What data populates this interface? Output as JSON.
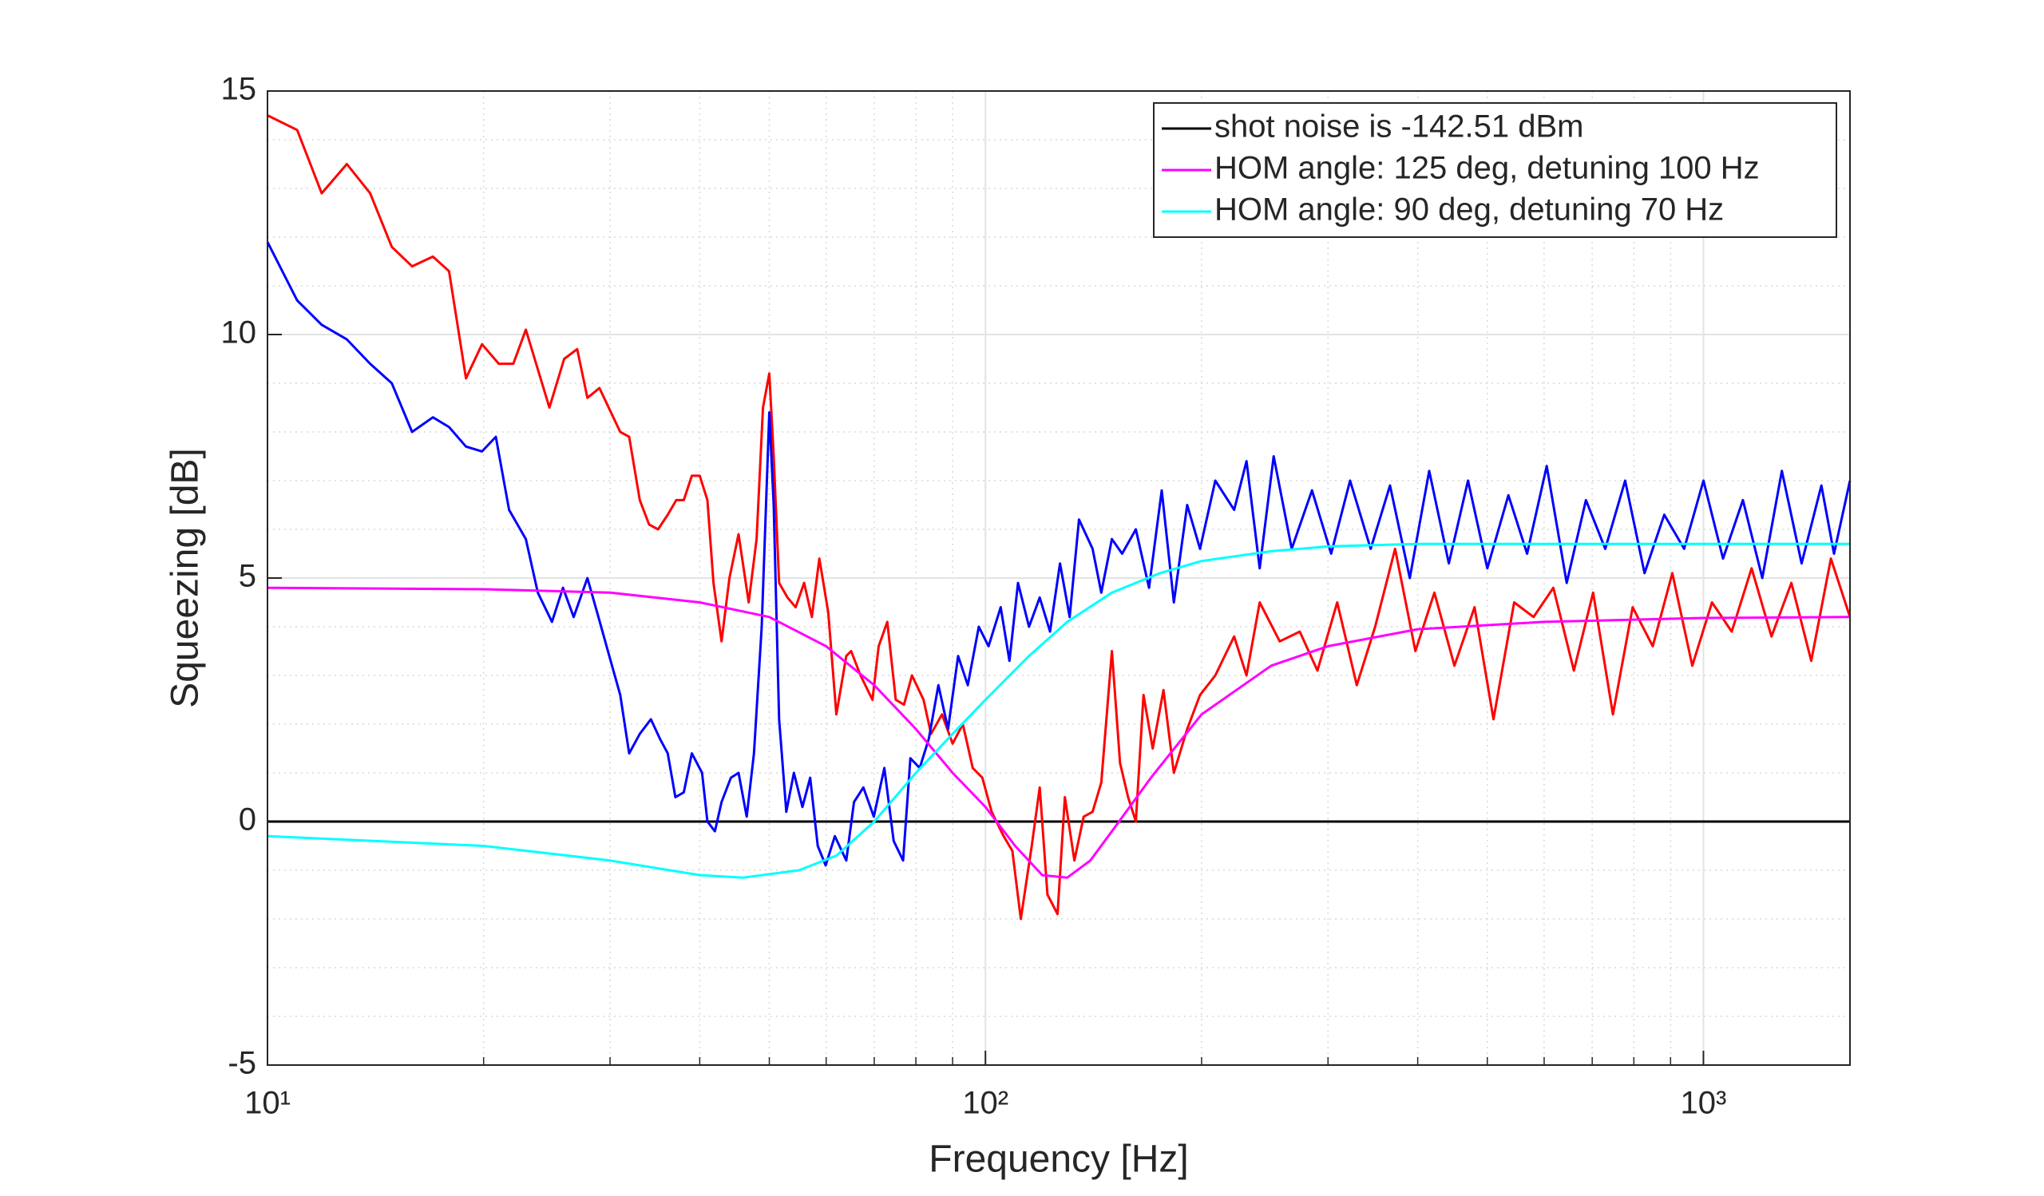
{
  "chart_data": {
    "type": "line",
    "xlabel": "Frequency [Hz]",
    "ylabel": "Squeezing [dB]",
    "xscale": "log",
    "grid": true,
    "minor_grid": true,
    "legend": "northeast",
    "xlim": [
      10,
      1600
    ],
    "ylim": [
      -5,
      15
    ],
    "xticks": [
      {
        "value": 10,
        "label": "10¹"
      },
      {
        "value": 100,
        "label": "10²"
      },
      {
        "value": 1000,
        "label": "10³"
      }
    ],
    "xminorticks": [
      20,
      30,
      40,
      50,
      60,
      70,
      80,
      90,
      200,
      300,
      400,
      500,
      600,
      700,
      800,
      900
    ],
    "yticks": [
      -5,
      0,
      5,
      10,
      15
    ],
    "yminorticks": [
      -4,
      -3,
      -2,
      -1,
      1,
      2,
      3,
      4,
      6,
      7,
      8,
      9,
      11,
      12,
      13,
      14
    ],
    "series": [
      {
        "name": "shot noise is -142.51 dBm",
        "color": "#000000",
        "x": [
          10,
          1600
        ],
        "values": [
          0,
          0
        ]
      },
      {
        "color": "#ff0000",
        "x": [
          10,
          11,
          11.9,
          12.9,
          13.9,
          14.9,
          15.9,
          17,
          17.9,
          18.9,
          19.9,
          21,
          22,
          22.9,
          24.7,
          25.9,
          27,
          27.9,
          29,
          31,
          31.9,
          33,
          34,
          35,
          36.1,
          37.1,
          38,
          39,
          40,
          41,
          41.8,
          42.9,
          44,
          45.3,
          46.8,
          48,
          49,
          50,
          50.7,
          51.6,
          53,
          54.4,
          55.9,
          57.3,
          58.7,
          60.4,
          62,
          64,
          65,
          67,
          69.6,
          71,
          73,
          75,
          77,
          79,
          82,
          84,
          87,
          90,
          93,
          96,
          99,
          102,
          106,
          109,
          112,
          116,
          119,
          122,
          126,
          129,
          133,
          137,
          141,
          145,
          150,
          154,
          158,
          162,
          166,
          171,
          177,
          183,
          191,
          199,
          209,
          222,
          231,
          241,
          257,
          274,
          290,
          309,
          329,
          349,
          372,
          397,
          422,
          450,
          480,
          510,
          545,
          580,
          618,
          660,
          702,
          748,
          797,
          850,
          905,
          965,
          1028,
          1095,
          1167,
          1244,
          1326,
          1413,
          1505,
          1600
        ],
        "values": [
          14.5,
          14.2,
          12.9,
          13.5,
          12.9,
          11.8,
          11.4,
          11.6,
          11.3,
          9.1,
          9.8,
          9.4,
          9.4,
          10.1,
          8.5,
          9.5,
          9.7,
          8.7,
          8.9,
          8.0,
          7.9,
          6.6,
          6.1,
          6.0,
          6.3,
          6.6,
          6.6,
          7.1,
          7.1,
          6.6,
          4.9,
          3.7,
          5.0,
          5.9,
          4.5,
          5.8,
          8.5,
          9.2,
          7.5,
          4.9,
          4.6,
          4.4,
          4.9,
          4.2,
          5.4,
          4.3,
          2.2,
          3.4,
          3.5,
          3.0,
          2.5,
          3.6,
          4.1,
          2.5,
          2.4,
          3.0,
          2.5,
          1.8,
          2.2,
          1.6,
          2.0,
          1.1,
          0.9,
          0.2,
          -0.3,
          -0.6,
          -2.0,
          -0.5,
          0.7,
          -1.5,
          -1.9,
          0.5,
          -0.8,
          0.1,
          0.2,
          0.8,
          3.5,
          1.2,
          0.5,
          0.0,
          2.6,
          1.5,
          2.7,
          1.0,
          1.9,
          2.6,
          3.0,
          3.8,
          3.0,
          4.5,
          3.7,
          3.9,
          3.1,
          4.5,
          2.8,
          4.0,
          5.6,
          3.5,
          4.7,
          3.2,
          4.4,
          2.1,
          4.5,
          4.2,
          4.8,
          3.1,
          4.7,
          2.2,
          4.4,
          3.6,
          5.1,
          3.2,
          4.5,
          3.9,
          5.2,
          3.8,
          4.9,
          3.3,
          5.4,
          4.2
        ]
      },
      {
        "color": "#0000ff",
        "x": [
          10,
          11,
          11.9,
          12.9,
          13.9,
          14.9,
          15.9,
          17,
          17.9,
          18.9,
          19.9,
          20.8,
          21.7,
          22.9,
          23.8,
          24.9,
          25.8,
          26.7,
          27.9,
          28.9,
          29.8,
          31,
          31.9,
          33,
          34.2,
          35.2,
          36.1,
          37,
          38,
          39,
          40.3,
          41,
          42,
          42.9,
          44.2,
          45.3,
          46.5,
          47.6,
          48.8,
          50,
          50.7,
          51.6,
          52.8,
          54.1,
          55.6,
          57,
          58.4,
          59.9,
          61.7,
          64,
          65.6,
          67.6,
          69.9,
          72.3,
          74.5,
          76.8,
          78.6,
          81,
          83.4,
          86,
          88.7,
          91.6,
          94.5,
          97.9,
          101,
          105,
          108,
          111,
          115,
          119,
          123,
          127,
          131,
          135,
          141,
          145,
          150,
          155,
          162,
          169,
          176,
          183,
          191,
          199,
          209,
          222,
          231,
          241,
          252,
          267,
          285,
          303,
          322,
          344,
          366,
          390,
          415,
          442,
          470,
          500,
          535,
          568,
          605,
          645,
          686,
          730,
          778,
          828,
          882,
          940,
          1000,
          1065,
          1135,
          1208,
          1286,
          1370,
          1460,
          1520,
          1600
        ],
        "values": [
          11.9,
          10.7,
          10.2,
          9.9,
          9.4,
          9.0,
          8.0,
          8.3,
          8.1,
          7.7,
          7.6,
          7.9,
          6.4,
          5.8,
          4.7,
          4.1,
          4.8,
          4.2,
          5.0,
          4.2,
          3.5,
          2.6,
          1.4,
          1.8,
          2.1,
          1.7,
          1.4,
          0.5,
          0.6,
          1.4,
          1.0,
          0.0,
          -0.2,
          0.4,
          0.9,
          1.0,
          0.1,
          1.4,
          4.0,
          8.4,
          6.5,
          2.1,
          0.2,
          1.0,
          0.3,
          0.9,
          -0.5,
          -0.9,
          -0.3,
          -0.8,
          0.4,
          0.7,
          0.1,
          1.1,
          -0.4,
          -0.8,
          1.3,
          1.1,
          1.7,
          2.8,
          1.9,
          3.4,
          2.8,
          4.0,
          3.6,
          4.4,
          3.3,
          4.9,
          4.0,
          4.6,
          3.9,
          5.3,
          4.2,
          6.2,
          5.6,
          4.7,
          5.8,
          5.5,
          6.0,
          4.8,
          6.8,
          4.5,
          6.5,
          5.6,
          7.0,
          6.4,
          7.4,
          5.2,
          7.5,
          5.6,
          6.8,
          5.5,
          7.0,
          5.6,
          6.9,
          5.0,
          7.2,
          5.3,
          7.0,
          5.2,
          6.7,
          5.5,
          7.3,
          4.9,
          6.6,
          5.6,
          7.0,
          5.1,
          6.3,
          5.6,
          7.0,
          5.4,
          6.6,
          5.0,
          7.2,
          5.3,
          6.9,
          5.5,
          7.0
        ]
      },
      {
        "name": "HOM angle: 125 deg, detuning 100 Hz",
        "color": "#ff00ff",
        "x": [
          10,
          20,
          30,
          40,
          50,
          60,
          70,
          80,
          90,
          100,
          110,
          120,
          130,
          140,
          150,
          170,
          200,
          250,
          300,
          400,
          600,
          1000,
          1600
        ],
        "values": [
          4.8,
          4.77,
          4.7,
          4.5,
          4.2,
          3.6,
          2.8,
          1.9,
          1.0,
          0.3,
          -0.5,
          -1.1,
          -1.15,
          -0.8,
          -0.2,
          0.9,
          2.2,
          3.2,
          3.6,
          3.95,
          4.1,
          4.18,
          4.2
        ]
      },
      {
        "name": "HOM angle: 90 deg, detuning 70 Hz",
        "color": "#00ffff",
        "x": [
          10,
          20,
          30,
          40,
          46,
          55,
          62,
          70,
          80,
          90,
          100,
          115,
          130,
          150,
          175,
          200,
          250,
          300,
          400,
          600,
          1000,
          1600
        ],
        "values": [
          -0.3,
          -0.5,
          -0.8,
          -1.1,
          -1.15,
          -1.0,
          -0.7,
          0.0,
          1.0,
          1.8,
          2.5,
          3.4,
          4.1,
          4.7,
          5.1,
          5.35,
          5.55,
          5.65,
          5.7,
          5.7,
          5.7,
          5.7
        ]
      }
    ]
  }
}
